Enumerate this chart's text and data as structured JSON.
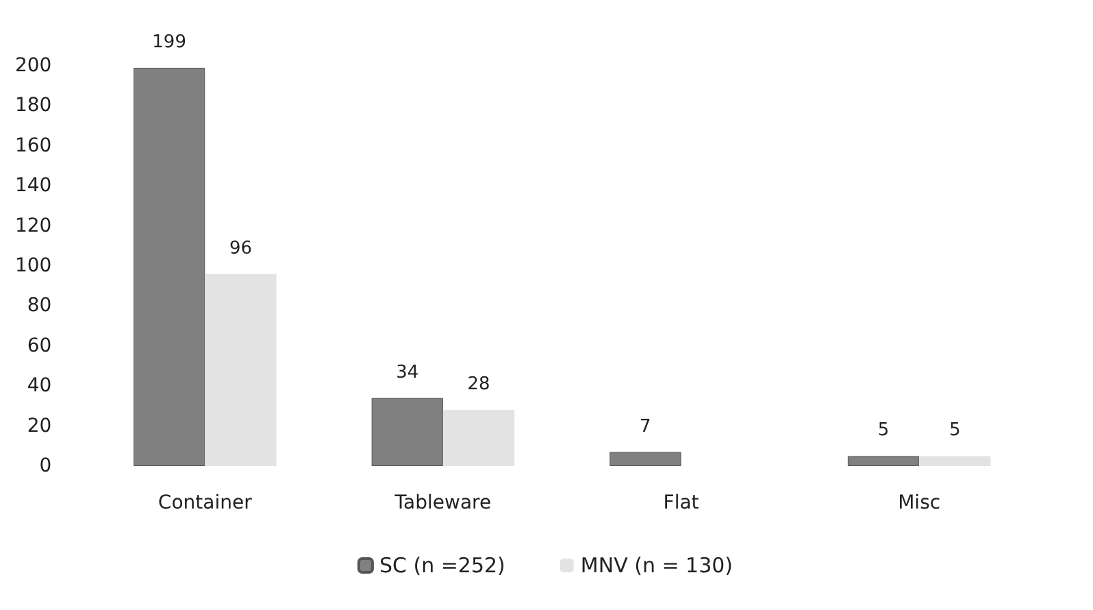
{
  "chart_data": {
    "type": "bar",
    "categories": [
      "Container",
      "Tableware",
      "Flat",
      "Misc"
    ],
    "series": [
      {
        "name": "SC (n =252)",
        "color": "#808080",
        "values": [
          199,
          34,
          7,
          5
        ]
      },
      {
        "name": "MNV (n = 130)",
        "color": "#e3e3e3",
        "values": [
          96,
          28,
          null,
          5
        ]
      }
    ],
    "ylim": [
      0,
      200
    ],
    "yticks": [
      0,
      20,
      40,
      60,
      80,
      100,
      120,
      140,
      160,
      180,
      200
    ],
    "grid": false,
    "legend": "bottom",
    "data_labels": true
  }
}
